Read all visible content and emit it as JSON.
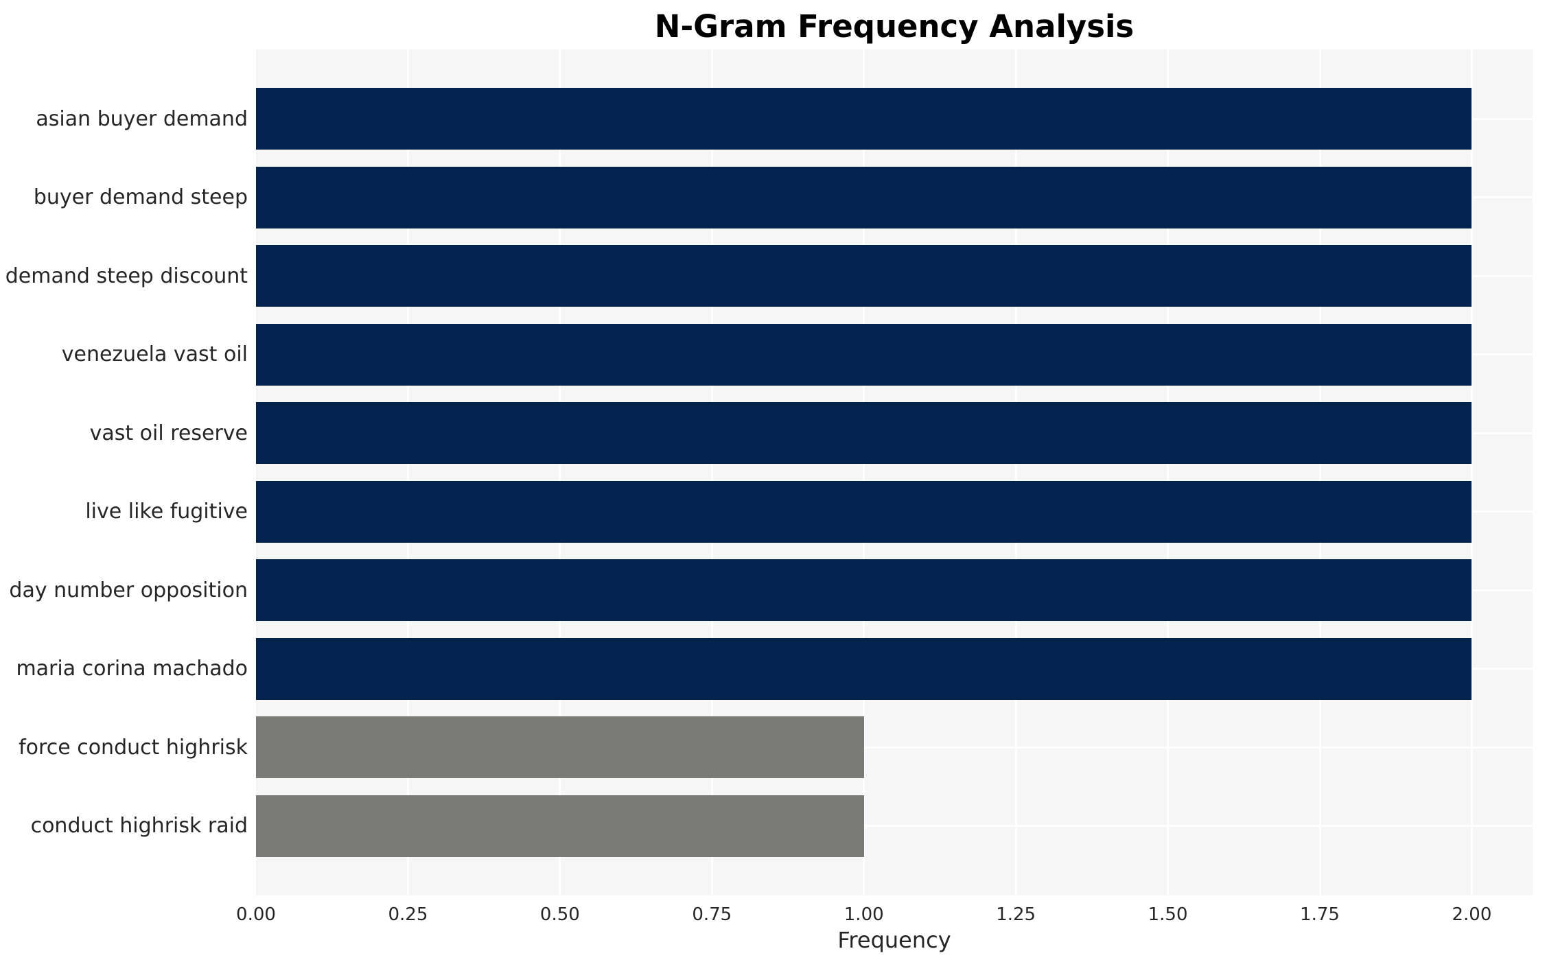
{
  "chart_data": {
    "type": "bar",
    "orientation": "horizontal",
    "title": "N-Gram Frequency Analysis",
    "xlabel": "Frequency",
    "ylabel": "",
    "categories": [
      "asian buyer demand",
      "buyer demand steep",
      "demand steep discount",
      "venezuela vast oil",
      "vast oil reserve",
      "live like fugitive",
      "day number opposition",
      "maria corina machado",
      "force conduct highrisk",
      "conduct highrisk raid"
    ],
    "values": [
      2,
      2,
      2,
      2,
      2,
      2,
      2,
      2,
      1,
      1
    ],
    "bar_colors": [
      "#02234e",
      "#02234e",
      "#02234e",
      "#02234e",
      "#02234e",
      "#02234e",
      "#02234e",
      "#02234e",
      "#7a7a77",
      "#7a7a77"
    ],
    "xlim": [
      0,
      2.1
    ],
    "xticks": [
      0,
      0.25,
      0.5,
      0.75,
      1,
      1.25,
      1.5,
      1.75,
      2
    ],
    "xtick_labels": [
      "0.00",
      "0.25",
      "0.50",
      "0.75",
      "1.00",
      "1.25",
      "1.50",
      "1.75",
      "2.00"
    ],
    "grid": true,
    "legend": false,
    "colors": {
      "bar_primary": "#02234e",
      "bar_secondary": "#7a7a77",
      "plot_background": "#f6f6f7",
      "gridline": "#ffffff",
      "tick_text": "#262626",
      "title_text": "#000000"
    }
  }
}
